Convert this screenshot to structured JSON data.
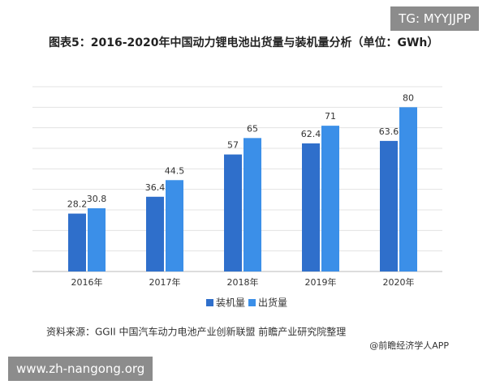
{
  "chart_data": {
    "type": "bar",
    "title": "图表5：2016-2020年中国动力锂电池出货量与装机量分析（单位：GWh）",
    "categories": [
      "2016年",
      "2017年",
      "2018年",
      "2019年",
      "2020年"
    ],
    "series": [
      {
        "name": "装机量",
        "color": "#2f6fcb",
        "values": [
          28.2,
          36.4,
          57,
          62.4,
          63.6
        ]
      },
      {
        "name": "出货量",
        "color": "#3b8fe8",
        "values": [
          30.8,
          44.5,
          65,
          71,
          80
        ]
      }
    ],
    "ylim": [
      0,
      90
    ],
    "yticks": [
      0,
      10,
      20,
      30,
      40,
      50,
      60,
      70,
      80,
      90
    ],
    "grid": true,
    "legend": "bottom",
    "source": "资料来源：GGII 中国汽车动力电池产业创新联盟 前瞻产业研究院整理",
    "credit": "@前瞻经济学人APP",
    "watermarks": [
      "TG: MYYJJPP",
      "www.zh-nangong.org"
    ]
  }
}
